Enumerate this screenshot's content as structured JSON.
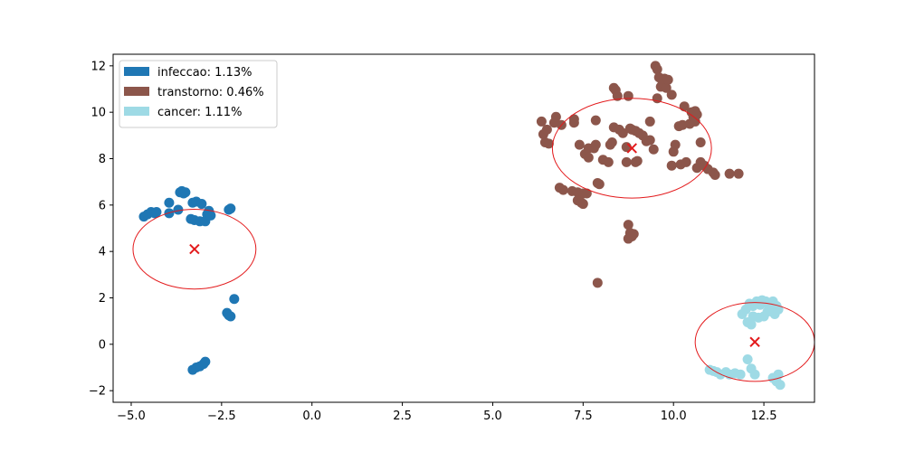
{
  "chart_data": {
    "type": "scatter",
    "title": "",
    "xlabel": "",
    "ylabel": "",
    "xlim": [
      -5.5,
      13.9
    ],
    "ylim": [
      -2.5,
      12.5
    ],
    "xticks": [
      -5.0,
      -2.5,
      0.0,
      2.5,
      5.0,
      7.5,
      10.0,
      12.5
    ],
    "xtick_labels": [
      "−5.0",
      "−2.5",
      "0.0",
      "2.5",
      "5.0",
      "7.5",
      "10.0",
      "12.5"
    ],
    "yticks": [
      -2,
      0,
      2,
      4,
      6,
      8,
      10,
      12
    ],
    "ytick_labels": [
      "−2",
      "0",
      "2",
      "4",
      "6",
      "8",
      "10",
      "12"
    ],
    "grid": false,
    "legend_position": "upper-left",
    "series": [
      {
        "name": "infeccao: 1.13%",
        "color": "#1f77b4",
        "points": [
          [
            -4.65,
            5.5
          ],
          [
            -4.55,
            5.6
          ],
          [
            -4.45,
            5.7
          ],
          [
            -4.35,
            5.65
          ],
          [
            -4.3,
            5.7
          ],
          [
            -3.95,
            6.1
          ],
          [
            -3.95,
            5.65
          ],
          [
            -3.7,
            5.8
          ],
          [
            -3.65,
            6.55
          ],
          [
            -3.6,
            6.6
          ],
          [
            -3.55,
            6.5
          ],
          [
            -3.5,
            6.55
          ],
          [
            -3.35,
            5.4
          ],
          [
            -3.3,
            6.1
          ],
          [
            -3.25,
            5.35
          ],
          [
            -3.2,
            6.15
          ],
          [
            -3.1,
            5.3
          ],
          [
            -3.05,
            6.05
          ],
          [
            -2.95,
            5.3
          ],
          [
            -2.9,
            5.6
          ],
          [
            -2.85,
            5.75
          ],
          [
            -2.8,
            5.55
          ],
          [
            -2.3,
            5.8
          ],
          [
            -2.25,
            5.85
          ],
          [
            -2.15,
            1.95
          ],
          [
            -2.35,
            1.35
          ],
          [
            -2.3,
            1.25
          ],
          [
            -2.25,
            1.2
          ],
          [
            -3.3,
            -1.1
          ],
          [
            -3.2,
            -1.0
          ],
          [
            -3.1,
            -0.95
          ],
          [
            -3.0,
            -0.85
          ],
          [
            -2.95,
            -0.75
          ]
        ]
      },
      {
        "name": "transtorno: 0.46%",
        "color": "#8c564b",
        "points": [
          [
            6.35,
            9.6
          ],
          [
            6.4,
            9.05
          ],
          [
            6.45,
            8.7
          ],
          [
            6.5,
            9.25
          ],
          [
            6.55,
            8.65
          ],
          [
            6.7,
            9.55
          ],
          [
            6.75,
            9.8
          ],
          [
            6.85,
            6.75
          ],
          [
            6.9,
            9.45
          ],
          [
            6.95,
            6.65
          ],
          [
            7.2,
            6.6
          ],
          [
            7.25,
            9.7
          ],
          [
            7.25,
            9.55
          ],
          [
            7.35,
            6.55
          ],
          [
            7.35,
            6.2
          ],
          [
            7.4,
            8.6
          ],
          [
            7.45,
            6.1
          ],
          [
            7.5,
            6.05
          ],
          [
            7.5,
            6.5
          ],
          [
            7.55,
            8.2
          ],
          [
            7.6,
            6.5
          ],
          [
            7.65,
            8.45
          ],
          [
            7.65,
            8.05
          ],
          [
            7.8,
            8.45
          ],
          [
            7.85,
            8.6
          ],
          [
            7.85,
            9.65
          ],
          [
            7.9,
            6.95
          ],
          [
            7.95,
            6.9
          ],
          [
            7.9,
            2.65
          ],
          [
            8.05,
            7.95
          ],
          [
            8.2,
            7.85
          ],
          [
            8.25,
            8.6
          ],
          [
            8.3,
            8.7
          ],
          [
            8.35,
            11.05
          ],
          [
            8.35,
            9.35
          ],
          [
            8.4,
            10.95
          ],
          [
            8.45,
            10.7
          ],
          [
            8.5,
            9.25
          ],
          [
            8.6,
            9.1
          ],
          [
            8.7,
            8.5
          ],
          [
            8.7,
            7.85
          ],
          [
            8.75,
            10.7
          ],
          [
            8.8,
            9.3
          ],
          [
            8.85,
            9.25
          ],
          [
            8.95,
            9.2
          ],
          [
            8.95,
            7.85
          ],
          [
            9.0,
            7.9
          ],
          [
            9.05,
            9.1
          ],
          [
            9.15,
            9.0
          ],
          [
            9.25,
            8.75
          ],
          [
            9.35,
            8.8
          ],
          [
            9.35,
            9.6
          ],
          [
            9.45,
            8.4
          ],
          [
            9.55,
            10.6
          ],
          [
            9.5,
            12.0
          ],
          [
            9.55,
            11.85
          ],
          [
            9.6,
            11.5
          ],
          [
            9.65,
            11.1
          ],
          [
            9.7,
            11.3
          ],
          [
            9.75,
            11.45
          ],
          [
            9.8,
            11.05
          ],
          [
            9.85,
            11.4
          ],
          [
            9.95,
            7.7
          ],
          [
            9.95,
            10.75
          ],
          [
            10.0,
            8.3
          ],
          [
            10.05,
            8.6
          ],
          [
            10.15,
            9.4
          ],
          [
            10.2,
            7.75
          ],
          [
            10.25,
            9.45
          ],
          [
            10.3,
            10.25
          ],
          [
            10.35,
            7.85
          ],
          [
            10.45,
            9.5
          ],
          [
            10.5,
            10.0
          ],
          [
            10.55,
            9.8
          ],
          [
            10.6,
            10.05
          ],
          [
            10.6,
            9.6
          ],
          [
            10.65,
            7.6
          ],
          [
            10.65,
            9.9
          ],
          [
            10.75,
            8.7
          ],
          [
            10.75,
            7.85
          ],
          [
            10.85,
            7.7
          ],
          [
            10.95,
            7.55
          ],
          [
            11.1,
            7.4
          ],
          [
            11.15,
            7.3
          ],
          [
            11.55,
            7.35
          ],
          [
            11.8,
            7.35
          ],
          [
            8.75,
            5.15
          ],
          [
            8.8,
            4.8
          ],
          [
            8.75,
            4.55
          ],
          [
            8.85,
            4.65
          ],
          [
            8.9,
            4.75
          ]
        ]
      },
      {
        "name": "cancer: 1.11%",
        "color": "#9edae5",
        "points": [
          [
            11.9,
            1.3
          ],
          [
            12.0,
            1.5
          ],
          [
            12.1,
            1.75
          ],
          [
            12.2,
            1.65
          ],
          [
            12.2,
            1.2
          ],
          [
            12.3,
            1.85
          ],
          [
            12.4,
            1.7
          ],
          [
            12.45,
            1.9
          ],
          [
            12.55,
            1.85
          ],
          [
            12.65,
            1.6
          ],
          [
            12.75,
            1.85
          ],
          [
            12.85,
            1.65
          ],
          [
            12.9,
            1.5
          ],
          [
            12.8,
            1.3
          ],
          [
            12.05,
            0.95
          ],
          [
            12.15,
            0.85
          ],
          [
            12.35,
            1.15
          ],
          [
            12.5,
            1.2
          ],
          [
            12.6,
            1.4
          ],
          [
            11.0,
            -1.1
          ],
          [
            11.1,
            -1.15
          ],
          [
            11.2,
            -1.2
          ],
          [
            11.3,
            -1.3
          ],
          [
            11.45,
            -1.2
          ],
          [
            11.55,
            -1.3
          ],
          [
            11.7,
            -1.25
          ],
          [
            11.85,
            -1.3
          ],
          [
            12.05,
            -0.65
          ],
          [
            12.15,
            -1.05
          ],
          [
            12.25,
            -1.3
          ],
          [
            12.75,
            -1.45
          ],
          [
            12.85,
            -1.6
          ],
          [
            12.95,
            -1.75
          ],
          [
            12.9,
            -1.3
          ]
        ]
      }
    ],
    "annotations": [
      {
        "type": "centroid",
        "marker": "x",
        "color": "#e31a1c",
        "x": -3.25,
        "y": 4.1,
        "rx": 1.7,
        "ry": 1.72
      },
      {
        "type": "centroid",
        "marker": "x",
        "color": "#e31a1c",
        "x": 8.85,
        "y": 8.45,
        "rx": 2.2,
        "ry": 2.15
      },
      {
        "type": "centroid",
        "marker": "x",
        "color": "#e31a1c",
        "x": 12.25,
        "y": 0.1,
        "rx": 1.65,
        "ry": 1.7
      }
    ]
  }
}
